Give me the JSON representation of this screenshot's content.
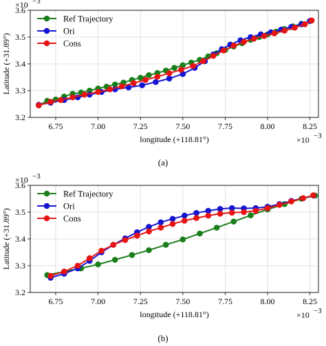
{
  "chart_data": [
    {
      "type": "line",
      "caption": "(a)",
      "xlabel": "longitude (+118.81°)",
      "ylabel": "Latitude (+31.89°)",
      "x_multiplier": "×10",
      "x_multiplier_exp": "−3",
      "y_multiplier": "×10",
      "y_multiplier_exp": "−3",
      "xlim": [
        6.6,
        8.3
      ],
      "ylim": [
        3.2,
        3.6
      ],
      "xticks": [
        6.75,
        7.0,
        7.25,
        7.5,
        7.75,
        8.0,
        8.25
      ],
      "xtick_labels": [
        "6.75",
        "7.00",
        "7.25",
        "7.50",
        "7.75",
        "8.00",
        "8.25"
      ],
      "yticks": [
        3.2,
        3.3,
        3.4,
        3.5,
        3.6
      ],
      "ytick_labels": [
        "3.2",
        "3.3",
        "3.4",
        "3.5",
        "3.6"
      ],
      "grid": true,
      "legend_position": "top-left",
      "series": [
        {
          "name": "Ref Trajectory",
          "color": "#1a7f1a",
          "x": [
            6.65,
            6.7,
            6.75,
            6.8,
            6.85,
            6.9,
            6.95,
            7.0,
            7.05,
            7.1,
            7.15,
            7.2,
            7.25,
            7.3,
            7.35,
            7.4,
            7.45,
            7.5,
            7.55,
            7.6,
            7.65,
            7.7,
            7.75,
            7.8,
            7.85,
            7.9,
            7.95,
            8.0,
            8.05,
            8.1,
            8.15,
            8.2,
            8.25
          ],
          "y": [
            3.245,
            3.262,
            3.267,
            3.278,
            3.288,
            3.293,
            3.3,
            3.308,
            3.315,
            3.323,
            3.33,
            3.34,
            3.348,
            3.358,
            3.366,
            3.375,
            3.385,
            3.395,
            3.405,
            3.415,
            3.428,
            3.44,
            3.452,
            3.465,
            3.477,
            3.49,
            3.5,
            3.51,
            3.52,
            3.53,
            3.54,
            3.55,
            3.56
          ]
        },
        {
          "name": "Ori",
          "color": "#1414d2",
          "x": [
            6.65,
            6.72,
            6.8,
            6.88,
            6.95,
            7.02,
            7.1,
            7.18,
            7.26,
            7.34,
            7.42,
            7.5,
            7.57,
            7.63,
            7.68,
            7.73,
            7.78,
            7.84,
            7.9,
            7.96,
            8.02,
            8.08,
            8.14,
            8.2,
            8.25
          ],
          "y": [
            3.247,
            3.255,
            3.265,
            3.275,
            3.285,
            3.295,
            3.305,
            3.312,
            3.32,
            3.332,
            3.345,
            3.362,
            3.385,
            3.41,
            3.435,
            3.455,
            3.472,
            3.488,
            3.5,
            3.51,
            3.518,
            3.528,
            3.538,
            3.548,
            3.56
          ]
        },
        {
          "name": "Cons",
          "color": "#e81414",
          "x": [
            6.65,
            6.72,
            6.78,
            6.85,
            6.92,
            7.0,
            7.07,
            7.14,
            7.21,
            7.28,
            7.35,
            7.42,
            7.49,
            7.56,
            7.62,
            7.68,
            7.74,
            7.8,
            7.86,
            7.92,
            7.98,
            8.04,
            8.1,
            8.16,
            8.22,
            8.26
          ],
          "y": [
            3.245,
            3.258,
            3.265,
            3.275,
            3.285,
            3.295,
            3.305,
            3.316,
            3.328,
            3.34,
            3.352,
            3.365,
            3.378,
            3.392,
            3.41,
            3.43,
            3.45,
            3.468,
            3.482,
            3.494,
            3.504,
            3.514,
            3.524,
            3.535,
            3.548,
            3.562
          ]
        }
      ]
    },
    {
      "type": "line",
      "caption": "(b)",
      "xlabel": "longitude (+118.81°)",
      "ylabel": "Latitude (+31.89°)",
      "x_multiplier": "×10",
      "x_multiplier_exp": "−3",
      "y_multiplier": "×10",
      "y_multiplier_exp": "−3",
      "xlim": [
        6.6,
        8.3
      ],
      "ylim": [
        3.2,
        3.6
      ],
      "xticks": [
        6.75,
        7.0,
        7.25,
        7.5,
        7.75,
        8.0,
        8.25
      ],
      "xtick_labels": [
        "6.75",
        "7.00",
        "7.25",
        "7.50",
        "7.75",
        "8.00",
        "8.25"
      ],
      "yticks": [
        3.2,
        3.3,
        3.4,
        3.5,
        3.6
      ],
      "ytick_labels": [
        "3.2",
        "3.3",
        "3.4",
        "3.5",
        "3.6"
      ],
      "grid": true,
      "legend_position": "top-left",
      "series": [
        {
          "name": "Ref Trajectory",
          "color": "#1a7f1a",
          "x": [
            6.7,
            6.8,
            6.9,
            7.0,
            7.1,
            7.2,
            7.3,
            7.4,
            7.5,
            7.6,
            7.7,
            7.8,
            7.9,
            8.0,
            8.1,
            8.2,
            8.28
          ],
          "y": [
            3.265,
            3.278,
            3.29,
            3.305,
            3.322,
            3.34,
            3.358,
            3.378,
            3.398,
            3.42,
            3.442,
            3.465,
            3.488,
            3.51,
            3.53,
            3.55,
            3.562
          ]
        },
        {
          "name": "Ori",
          "color": "#1414d2",
          "x": [
            6.72,
            6.8,
            6.88,
            6.95,
            7.02,
            7.09,
            7.16,
            7.23,
            7.3,
            7.37,
            7.44,
            7.51,
            7.58,
            7.65,
            7.72,
            7.79,
            7.86,
            7.93,
            8.0,
            8.07,
            8.14,
            8.21,
            8.27
          ],
          "y": [
            3.255,
            3.27,
            3.29,
            3.318,
            3.35,
            3.378,
            3.402,
            3.425,
            3.445,
            3.462,
            3.475,
            3.487,
            3.497,
            3.505,
            3.512,
            3.515,
            3.514,
            3.515,
            3.52,
            3.53,
            3.542,
            3.552,
            3.562
          ]
        },
        {
          "name": "Cons",
          "color": "#e81414",
          "x": [
            6.72,
            6.8,
            6.88,
            6.95,
            7.02,
            7.09,
            7.16,
            7.23,
            7.3,
            7.37,
            7.44,
            7.51,
            7.58,
            7.65,
            7.72,
            7.79,
            7.86,
            7.93,
            8.0,
            8.07,
            8.14,
            8.21,
            8.27
          ],
          "y": [
            3.262,
            3.278,
            3.3,
            3.328,
            3.356,
            3.378,
            3.396,
            3.412,
            3.428,
            3.442,
            3.456,
            3.468,
            3.478,
            3.487,
            3.494,
            3.498,
            3.5,
            3.505,
            3.515,
            3.527,
            3.54,
            3.552,
            3.563
          ]
        }
      ]
    }
  ]
}
